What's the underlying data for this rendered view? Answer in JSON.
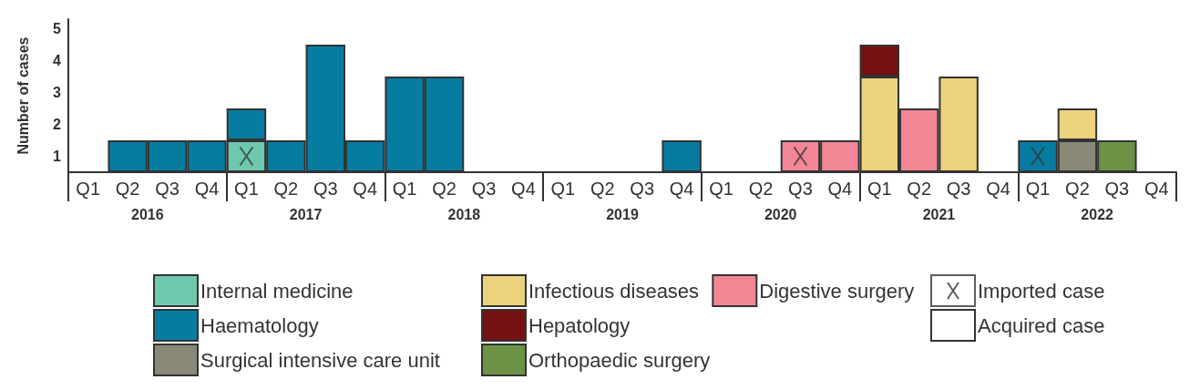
{
  "chart_data": {
    "type": "bar",
    "stacked": true,
    "ylabel": "Number of cases",
    "legend": "bottom",
    "grid": false,
    "categories": [
      "Q1",
      "Q2",
      "Q3",
      "Q4",
      "Q1",
      "Q2",
      "Q3",
      "Q4",
      "Q1",
      "Q2",
      "Q3",
      "Q4",
      "Q1",
      "Q2",
      "Q3",
      "Q4",
      "Q1",
      "Q2",
      "Q3",
      "Q4",
      "Q1",
      "Q2",
      "Q3",
      "Q4",
      "Q1",
      "Q2",
      "Q3",
      "Q4"
    ],
    "annotations": [
      "2016",
      "2017",
      "2018",
      "2019",
      "2020",
      "2021",
      "2022"
    ],
    "ylim": [
      0,
      4.8
    ],
    "yticks": [
      {
        "value": 0.5,
        "label": "1"
      },
      {
        "value": 1.5,
        "label": "2"
      },
      {
        "value": 2.5,
        "label": "3"
      },
      {
        "value": 3.5,
        "label": "4"
      },
      {
        "value": 4.5,
        "label": "5"
      }
    ],
    "series": [
      {
        "name": "Internal medicine",
        "color": "#6ec8b0",
        "values": [
          null,
          null,
          null,
          null,
          1,
          null,
          null,
          null,
          null,
          null,
          null,
          null,
          null,
          null,
          null,
          null,
          null,
          null,
          null,
          null,
          null,
          null,
          null,
          null,
          null,
          null,
          null,
          null
        ]
      },
      {
        "name": "Haematology",
        "color": "#067ca0",
        "values": [
          null,
          1,
          1,
          1,
          1,
          1,
          4,
          1,
          3,
          3,
          null,
          null,
          null,
          null,
          null,
          1,
          null,
          null,
          null,
          null,
          null,
          null,
          null,
          null,
          1,
          null,
          null,
          null
        ]
      },
      {
        "name": "Surgical intensive care unit",
        "color": "#8a8876",
        "values": [
          null,
          null,
          null,
          null,
          null,
          null,
          null,
          null,
          null,
          null,
          null,
          null,
          null,
          null,
          null,
          null,
          null,
          null,
          null,
          null,
          null,
          null,
          null,
          null,
          null,
          1,
          null,
          null
        ]
      },
      {
        "name": "Infectious diseases",
        "color": "#ecd27c",
        "values": [
          null,
          null,
          null,
          null,
          null,
          null,
          null,
          null,
          null,
          null,
          null,
          null,
          null,
          null,
          null,
          null,
          null,
          null,
          null,
          null,
          3,
          null,
          3,
          null,
          null,
          1,
          null,
          null
        ]
      },
      {
        "name": "Hepatology",
        "color": "#741112",
        "values": [
          null,
          null,
          null,
          null,
          null,
          null,
          null,
          null,
          null,
          null,
          null,
          null,
          null,
          null,
          null,
          null,
          null,
          null,
          null,
          null,
          1,
          null,
          null,
          null,
          null,
          null,
          null,
          null
        ]
      },
      {
        "name": "Orthopaedic surgery",
        "color": "#6b9245",
        "values": [
          null,
          null,
          null,
          null,
          null,
          null,
          null,
          null,
          null,
          null,
          null,
          null,
          null,
          null,
          null,
          null,
          null,
          null,
          null,
          null,
          null,
          null,
          null,
          null,
          null,
          null,
          1,
          null
        ]
      },
      {
        "name": "Digestive surgery",
        "color": "#f28695",
        "values": [
          null,
          null,
          null,
          null,
          null,
          null,
          null,
          null,
          null,
          null,
          null,
          null,
          null,
          null,
          null,
          null,
          null,
          null,
          1,
          1,
          null,
          2,
          null,
          null,
          null,
          null,
          null,
          null
        ]
      },
      {
        "name": "Imported case",
        "type": "scatter",
        "marker": "cross",
        "color": "#333333",
        "values": [
          null,
          null,
          null,
          null,
          0.5,
          null,
          null,
          null,
          null,
          null,
          null,
          null,
          null,
          null,
          null,
          null,
          null,
          null,
          0.5,
          null,
          null,
          null,
          null,
          null,
          0.5,
          null,
          null,
          null
        ]
      },
      {
        "name": "Acquired case",
        "color": "#ffffff",
        "values": [
          null,
          null,
          null,
          null,
          null,
          null,
          null,
          null,
          null,
          null,
          null,
          null,
          null,
          null,
          null,
          null,
          null,
          null,
          null,
          null,
          null,
          null,
          null,
          null,
          null,
          null,
          null,
          null
        ]
      }
    ]
  }
}
